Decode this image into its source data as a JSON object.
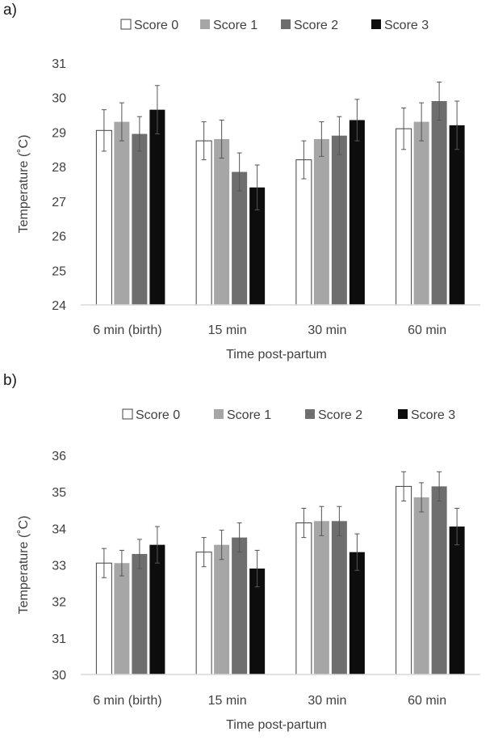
{
  "charts_meta": {
    "colors": {
      "Score 0": "#ffffff",
      "Score 1": "#a6a6a6",
      "Score 2": "#6e6e6e",
      "Score 3": "#0d0d0d",
      "axis": "#d9d9d9",
      "error_bar": "#555555",
      "text": "#404040"
    }
  },
  "chart_data": [
    {
      "panel_label": "a)",
      "type": "bar",
      "categories": [
        "6 min (birth)",
        "15 min",
        "30 min",
        "60 min"
      ],
      "series": [
        {
          "name": "Score 0",
          "values": [
            29.05,
            28.75,
            28.2,
            29.1
          ],
          "errors": [
            0.6,
            0.55,
            0.55,
            0.6
          ]
        },
        {
          "name": "Score 1",
          "values": [
            29.3,
            28.8,
            28.8,
            29.3
          ],
          "errors": [
            0.55,
            0.55,
            0.5,
            0.55
          ]
        },
        {
          "name": "Score 2",
          "values": [
            28.95,
            27.85,
            28.9,
            29.9
          ],
          "errors": [
            0.5,
            0.55,
            0.55,
            0.55
          ]
        },
        {
          "name": "Score 3",
          "values": [
            29.65,
            27.4,
            29.35,
            29.2
          ],
          "errors": [
            0.7,
            0.65,
            0.6,
            0.7
          ]
        }
      ],
      "xlabel": "Time post-partum",
      "ylabel": "Temperature (˚C)",
      "ylim": [
        24,
        31
      ],
      "yticks": [
        24,
        25,
        26,
        27,
        28,
        29,
        30,
        31
      ],
      "grid": false,
      "legend": "top"
    },
    {
      "panel_label": "b)",
      "type": "bar",
      "categories": [
        "6 min (birth)",
        "15 min",
        "30 min",
        "60 min"
      ],
      "series": [
        {
          "name": "Score 0",
          "values": [
            33.05,
            33.35,
            34.15,
            35.15
          ],
          "errors": [
            0.4,
            0.4,
            0.4,
            0.4
          ]
        },
        {
          "name": "Score 1",
          "values": [
            33.05,
            33.55,
            34.2,
            34.85
          ],
          "errors": [
            0.35,
            0.4,
            0.4,
            0.4
          ]
        },
        {
          "name": "Score 2",
          "values": [
            33.3,
            33.75,
            34.2,
            35.15
          ],
          "errors": [
            0.4,
            0.4,
            0.4,
            0.4
          ]
        },
        {
          "name": "Score 3",
          "values": [
            33.55,
            32.9,
            33.35,
            34.05
          ],
          "errors": [
            0.5,
            0.5,
            0.5,
            0.5
          ]
        }
      ],
      "xlabel": "Time post-partum",
      "ylabel": "Temperature (˚C)",
      "ylim": [
        30,
        36
      ],
      "yticks": [
        30,
        31,
        32,
        33,
        34,
        35,
        36
      ],
      "grid": false,
      "legend": "top"
    }
  ]
}
